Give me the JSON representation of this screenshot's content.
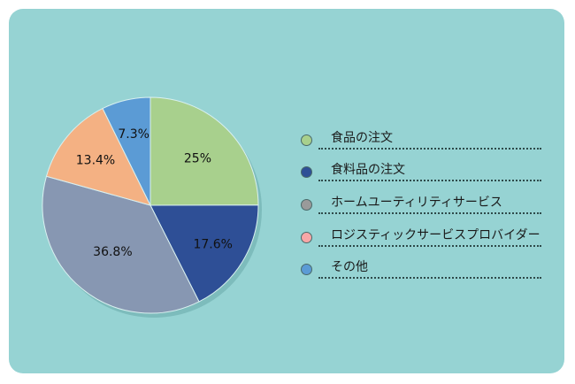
{
  "chart_data": {
    "type": "pie",
    "categories": [
      "食品の注文",
      "食料品の注文",
      "ホームユーティリティサービス",
      "ロジスティックサービスプロバイダー",
      "その他"
    ],
    "values": [
      25,
      17.6,
      36.8,
      13.4,
      7.3
    ],
    "value_labels": [
      "25%",
      "17.6%",
      "36.8%",
      "13.4%",
      "7.3%"
    ],
    "colors": [
      "#a8d08d",
      "#2e4f96",
      "#8797b2",
      "#f4b183",
      "#5b9bd5"
    ],
    "legend_colors": [
      "#a8d08d",
      "#2e4f96",
      "#9a9a9a",
      "#f8a7a7",
      "#5b9bd5"
    ],
    "legend_placement": "right",
    "title": "",
    "start_angle_deg": 0,
    "direction": "clockwise"
  }
}
